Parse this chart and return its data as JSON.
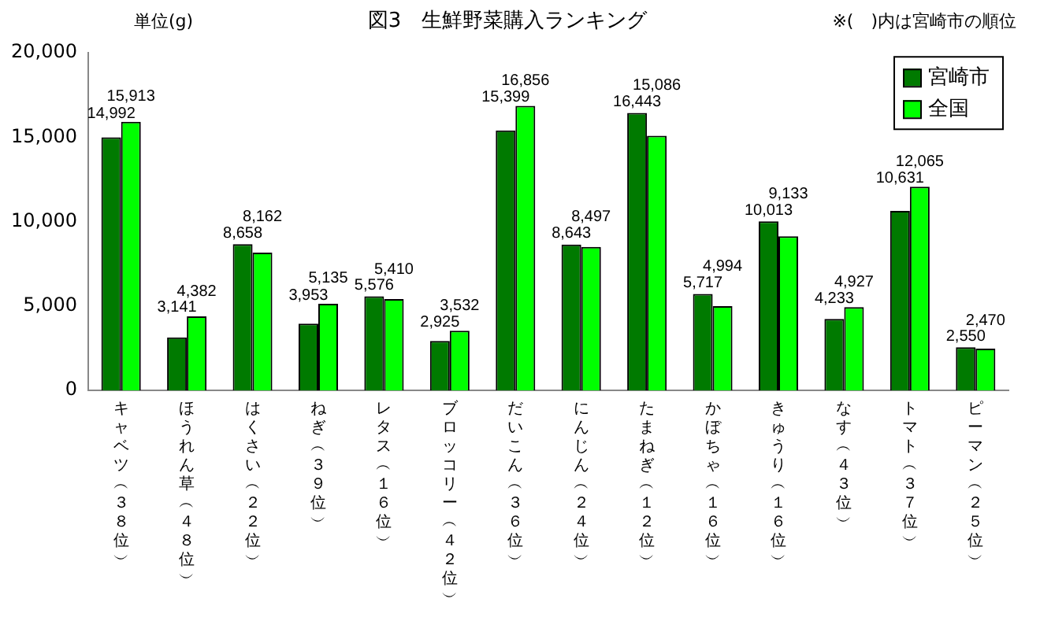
{
  "chart_data": {
    "type": "bar",
    "title": "図3　生鮮野菜購入ランキング",
    "annotations": [
      "単位(g)",
      "※(　)内は宮崎市の順位"
    ],
    "categories": [
      "キャベツ︵３８位︶",
      "ほうれん草︵４８位︶",
      "はくさい︵２２位︶",
      "ねぎ︵３９位︶",
      "レタス︵１６位︶",
      "ブロッコリー︵４２位︶",
      "だいこん︵３６位︶",
      "にんじん︵２４位︶",
      "たまねぎ︵１２位︶",
      "かぼちゃ︵１６位︶",
      "きゅうり︵１６位︶",
      "なす︵４３位︶",
      "トマト︵３７位︶",
      "ピーマン︵２５位︶"
    ],
    "series": [
      {
        "name": "宮崎市",
        "color": "#007a00",
        "values": [
          14992,
          3141,
          8658,
          3953,
          5576,
          2925,
          15399,
          8643,
          16443,
          5717,
          10013,
          4233,
          10631,
          2550
        ],
        "value_labels": [
          "14,992",
          "3,141",
          "8,658",
          "3,953",
          "5,576",
          "2,925",
          "15,399",
          "8,643",
          "16,443",
          "5,717",
          "10,013",
          "4,233",
          "10,631",
          "2,550"
        ]
      },
      {
        "name": "全国",
        "color": "#00ff00",
        "values": [
          15913,
          4382,
          8162,
          5135,
          5410,
          3532,
          16856,
          8497,
          15086,
          4994,
          9133,
          4927,
          12065,
          2470
        ],
        "value_labels": [
          "15,913",
          "4,382",
          "8,162",
          "5,135",
          "5,410",
          "3,532",
          "16,856",
          "8,497",
          "15,086",
          "4,994",
          "9,133",
          "4,927",
          "12,065",
          "2,470"
        ]
      }
    ],
    "ylim": [
      0,
      20000
    ],
    "yticks": [
      {
        "value": 0,
        "label": "0"
      },
      {
        "value": 5000,
        "label": "5,000"
      },
      {
        "value": 10000,
        "label": "10,000"
      },
      {
        "value": 15000,
        "label": "15,000"
      },
      {
        "value": 20000,
        "label": "20,000"
      }
    ],
    "grid": false,
    "legend": "top right"
  }
}
